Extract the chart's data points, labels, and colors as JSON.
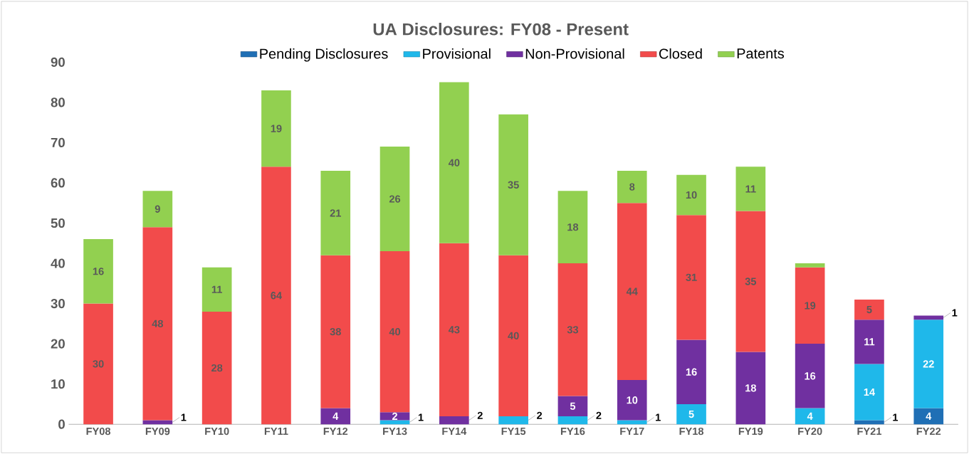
{
  "chart_data": {
    "type": "bar",
    "title": "UA Disclosures: FY08 - Present",
    "stacked": true,
    "legend": "top",
    "grid": false,
    "data_labels": true,
    "categories": [
      "FY08",
      "FY09",
      "FY10",
      "FY11",
      "FY12",
      "FY13",
      "FY14",
      "FY15",
      "FY16",
      "FY17",
      "FY18",
      "FY19",
      "FY20",
      "FY21",
      "FY22"
    ],
    "ylim": [
      0,
      90
    ],
    "yticks": [
      0,
      10,
      20,
      30,
      40,
      50,
      60,
      70,
      80,
      90
    ],
    "series": [
      {
        "name": "Pending Disclosures",
        "color": "#1f6fb5",
        "values": [
          null,
          null,
          null,
          null,
          null,
          null,
          null,
          null,
          null,
          null,
          null,
          null,
          null,
          1,
          4
        ]
      },
      {
        "name": "Provisional",
        "color": "#1fb8ea",
        "values": [
          null,
          null,
          null,
          null,
          null,
          1,
          null,
          2,
          2,
          1,
          5,
          null,
          4,
          14,
          22
        ]
      },
      {
        "name": "Non-Provisional",
        "color": "#7030a0",
        "values": [
          null,
          1,
          null,
          null,
          4,
          2,
          2,
          null,
          5,
          10,
          16,
          18,
          16,
          11,
          1
        ]
      },
      {
        "name": "Closed",
        "color": "#f24b4b",
        "values": [
          30,
          48,
          28,
          64,
          38,
          40,
          43,
          40,
          33,
          44,
          31,
          35,
          19,
          5,
          null
        ]
      },
      {
        "name": "Patents",
        "color": "#92d050",
        "values": [
          16,
          9,
          11,
          19,
          21,
          26,
          40,
          35,
          18,
          8,
          10,
          11,
          1,
          null,
          null
        ],
        "value_labels": [
          "16",
          "9",
          "11",
          "19",
          "21",
          "26",
          "40",
          "35",
          "18",
          "8",
          "10",
          "11",
          null,
          null,
          null
        ]
      }
    ]
  }
}
